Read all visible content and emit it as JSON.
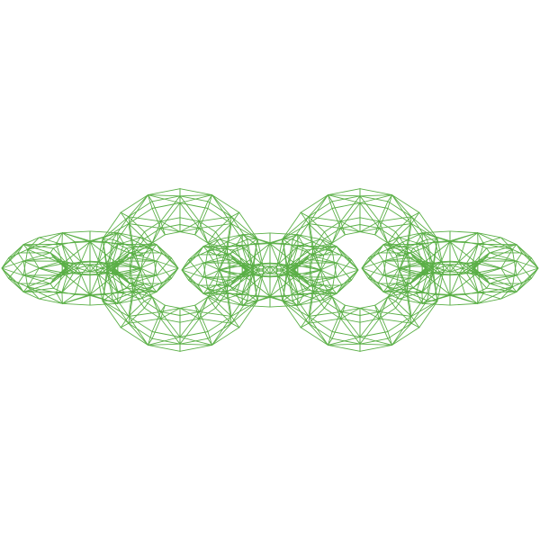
{
  "scene": {
    "subject": "wireframe-chain",
    "link_count": 5,
    "background_color": "#ffffff",
    "wire_color": "#5aaf46",
    "links": [
      {
        "orientation": "flat"
      },
      {
        "orientation": "upright"
      },
      {
        "orientation": "flat"
      },
      {
        "orientation": "upright"
      },
      {
        "orientation": "flat"
      }
    ]
  }
}
